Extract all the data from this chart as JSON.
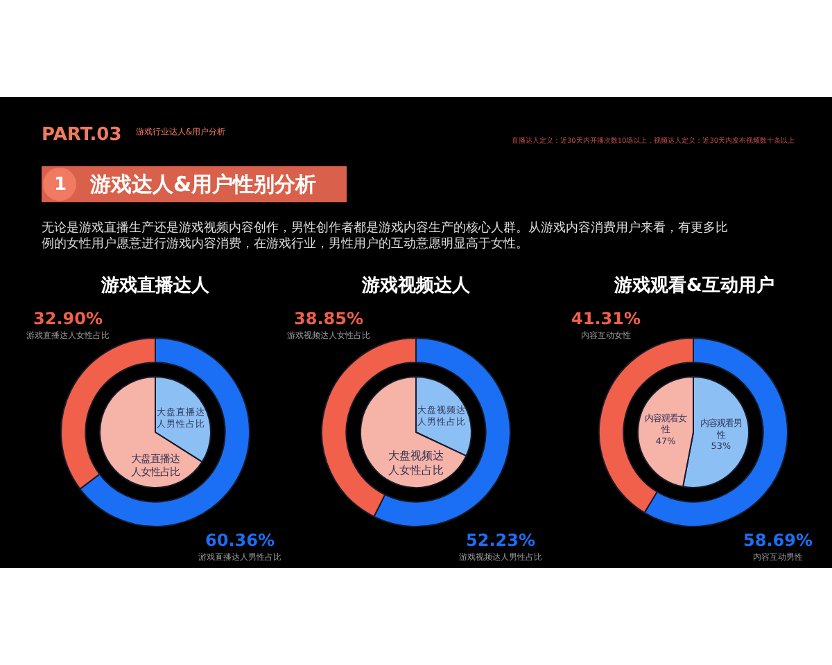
{
  "chart_data": [
    {
      "type": "other",
      "title": "游戏达人&用户性别分析",
      "annotations": [
        "PART.03",
        "游戏行业达人&用户分析",
        "直播达人定义：近30天内开播次数10场以上，视频达人定义：近30天内发布视频数十条以上",
        "1",
        "无论是游戏直播生产还是游戏视频内容创作，男性创作者都是游戏内容生产的核心人群。从游戏内容消费用户来看，有更多比例的女性用户愿意进行游戏内容消费，在游戏行业，男性用户的互动意愿明显高于女性。"
      ]
    },
    {
      "type": "donut",
      "title": "游戏直播达人",
      "categories": [
        "游戏直播达人男性占比",
        "游戏直播达人女性占比"
      ],
      "series": [
        {
          "type": "donut",
          "values": [
            60.36,
            32.9
          ],
          "colors": [
            "#1a6ff5",
            "#f0604a"
          ],
          "value_labels": [
            "60.36%",
            "32.90%"
          ]
        },
        {
          "type": "pie",
          "values": [
            34,
            66
          ],
          "colors": [
            "#8cc0f5",
            "#f6b3a8"
          ],
          "value_labels": [
            "大盘直播达人男性占比",
            "大盘直播达人女性占比"
          ]
        }
      ]
    },
    {
      "type": "donut",
      "title": "游戏视频达人",
      "categories": [
        "游戏视频达人男性占比",
        "游戏视频达人女性占比"
      ],
      "series": [
        {
          "type": "donut",
          "values": [
            52.23,
            38.85
          ],
          "colors": [
            "#1a6ff5",
            "#f0604a"
          ],
          "value_labels": [
            "52.23%",
            "38.85%"
          ]
        },
        {
          "type": "pie",
          "values": [
            32,
            68
          ],
          "colors": [
            "#8cc0f5",
            "#f6b3a8"
          ],
          "value_labels": [
            "大盘视频达人男性占比",
            "大盘视频达人女性占比"
          ]
        }
      ]
    },
    {
      "type": "donut",
      "title": "游戏观看&互动用户",
      "categories": [
        "内容互动男性",
        "内容互动女性"
      ],
      "series": [
        {
          "type": "donut",
          "values": [
            58.69,
            41.31
          ],
          "colors": [
            "#1a6ff5",
            "#f0604a"
          ],
          "value_labels": [
            "58.69%",
            "41.31%"
          ]
        },
        {
          "type": "pie",
          "values": [
            53,
            47
          ],
          "colors": [
            "#8cc0f5",
            "#f6b3a8"
          ],
          "value_labels": [
            "内容观看男性 53%",
            "内容观看女性 47%"
          ]
        }
      ]
    }
  ]
}
